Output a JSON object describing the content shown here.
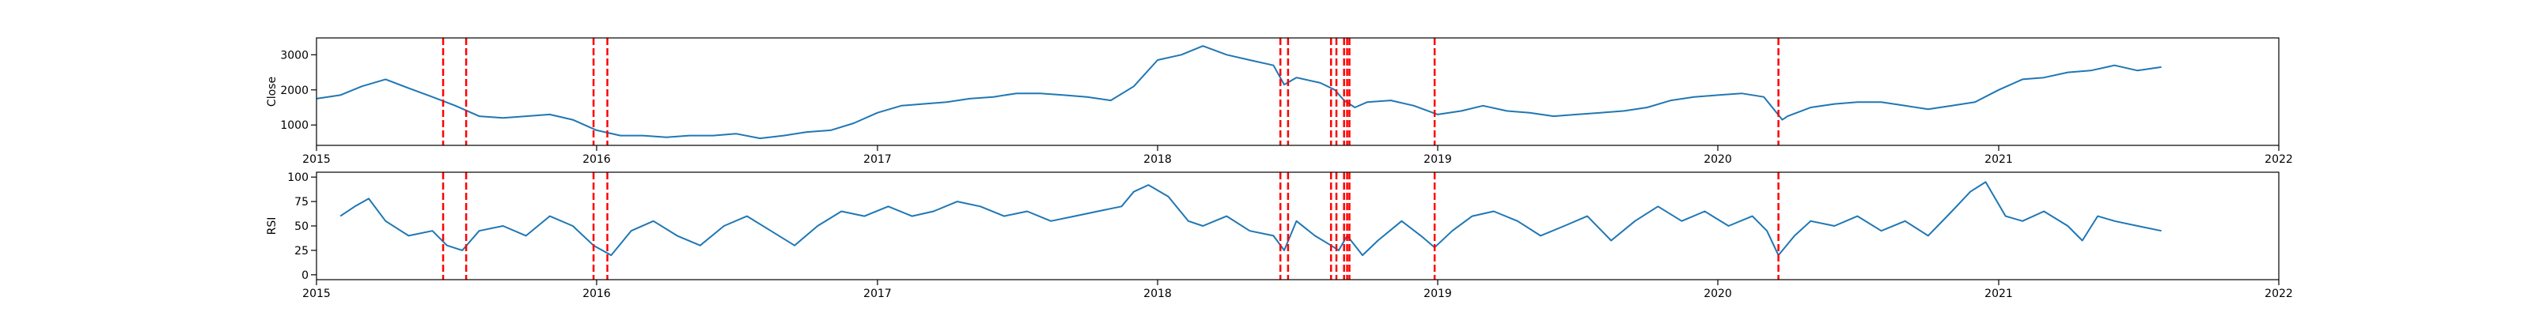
{
  "chart_data": [
    {
      "type": "line",
      "ylabel": "Close",
      "xlim": [
        "2015-01-01",
        "2022-01-01"
      ],
      "ylim": [
        420,
        3480
      ],
      "x_ticks": [
        "2015",
        "2016",
        "2017",
        "2018",
        "2019",
        "2020",
        "2021",
        "2022"
      ],
      "y_ticks": [
        1000,
        2000,
        3000
      ],
      "grid": false,
      "line_color": "#1f77b4",
      "event_color": "#ff0000",
      "events": [
        "2015-06-15",
        "2015-07-15",
        "2015-12-28",
        "2016-01-15",
        "2018-06-10",
        "2018-06-20",
        "2018-08-15",
        "2018-08-22",
        "2018-09-01",
        "2018-09-05",
        "2018-09-08",
        "2018-12-28",
        "2020-03-20"
      ],
      "series": [
        {
          "x": [
            "2015-01-01",
            "2015-02-01",
            "2015-03-01",
            "2015-04-01",
            "2015-05-01",
            "2015-06-01",
            "2015-07-01",
            "2015-08-01",
            "2015-09-01",
            "2015-10-01",
            "2015-11-01",
            "2015-12-01",
            "2016-01-01",
            "2016-02-01",
            "2016-03-01",
            "2016-04-01",
            "2016-05-01",
            "2016-06-01",
            "2016-07-01",
            "2016-08-01",
            "2016-09-01",
            "2016-10-01",
            "2016-11-01",
            "2016-12-01",
            "2017-01-01",
            "2017-02-01",
            "2017-03-01",
            "2017-04-01",
            "2017-05-01",
            "2017-06-01",
            "2017-07-01",
            "2017-08-01",
            "2017-09-01",
            "2017-10-01",
            "2017-11-01",
            "2017-12-01",
            "2018-01-01",
            "2018-02-01",
            "2018-03-01",
            "2018-04-01",
            "2018-05-01",
            "2018-06-01",
            "2018-06-15",
            "2018-07-01",
            "2018-08-01",
            "2018-08-20",
            "2018-09-01",
            "2018-09-15",
            "2018-10-01",
            "2018-11-01",
            "2018-12-01",
            "2019-01-01",
            "2019-02-01",
            "2019-03-01",
            "2019-04-01",
            "2019-05-01",
            "2019-06-01",
            "2019-07-01",
            "2019-08-01",
            "2019-09-01",
            "2019-10-01",
            "2019-11-01",
            "2019-12-01",
            "2020-01-01",
            "2020-02-01",
            "2020-03-01",
            "2020-03-25",
            "2020-04-01",
            "2020-05-01",
            "2020-06-01",
            "2020-07-01",
            "2020-08-01",
            "2020-09-01",
            "2020-10-01",
            "2020-11-01",
            "2020-12-01",
            "2021-01-01",
            "2021-02-01",
            "2021-03-01",
            "2021-04-01",
            "2021-05-01",
            "2021-06-01",
            "2021-07-01",
            "2021-08-01"
          ],
          "values": [
            1750,
            1850,
            2100,
            2300,
            2050,
            1800,
            1550,
            1250,
            1200,
            1250,
            1300,
            1150,
            850,
            700,
            700,
            650,
            700,
            700,
            750,
            620,
            700,
            800,
            850,
            1050,
            1350,
            1550,
            1600,
            1650,
            1750,
            1800,
            1900,
            1900,
            1850,
            1800,
            1700,
            2100,
            2850,
            3000,
            3250,
            3000,
            2850,
            2700,
            2150,
            2350,
            2200,
            2000,
            1700,
            1500,
            1650,
            1700,
            1550,
            1300,
            1400,
            1550,
            1400,
            1350,
            1250,
            1300,
            1350,
            1400,
            1500,
            1700,
            1800,
            1850,
            1900,
            1800,
            1150,
            1250,
            1500,
            1600,
            1650,
            1650,
            1550,
            1450,
            1550,
            1650,
            2000,
            2300,
            2350,
            2500,
            2550,
            2700,
            2550,
            2650
          ]
        }
      ]
    },
    {
      "type": "line",
      "ylabel": "RSI",
      "xlim": [
        "2015-01-01",
        "2022-01-01"
      ],
      "ylim": [
        -5,
        105
      ],
      "x_ticks": [
        "2015",
        "2016",
        "2017",
        "2018",
        "2019",
        "2020",
        "2021",
        "2022"
      ],
      "y_ticks": [
        0,
        25,
        50,
        75,
        100
      ],
      "grid": false,
      "line_color": "#1f77b4",
      "event_color": "#ff0000",
      "events": [
        "2015-06-15",
        "2015-07-15",
        "2015-12-28",
        "2016-01-15",
        "2018-06-10",
        "2018-06-20",
        "2018-08-15",
        "2018-08-22",
        "2018-09-01",
        "2018-09-05",
        "2018-09-08",
        "2018-12-28",
        "2020-03-20"
      ],
      "series": [
        {
          "x": [
            "2015-02-01",
            "2015-02-20",
            "2015-03-10",
            "2015-04-01",
            "2015-05-01",
            "2015-06-01",
            "2015-06-20",
            "2015-07-10",
            "2015-08-01",
            "2015-09-01",
            "2015-10-01",
            "2015-11-01",
            "2015-12-01",
            "2015-12-28",
            "2016-01-20",
            "2016-02-15",
            "2016-03-15",
            "2016-04-15",
            "2016-05-15",
            "2016-06-15",
            "2016-07-15",
            "2016-08-15",
            "2016-09-15",
            "2016-10-15",
            "2016-11-15",
            "2016-12-15",
            "2017-01-15",
            "2017-02-15",
            "2017-03-15",
            "2017-04-15",
            "2017-05-15",
            "2017-06-15",
            "2017-07-15",
            "2017-08-15",
            "2017-09-15",
            "2017-10-15",
            "2017-11-15",
            "2017-12-01",
            "2017-12-20",
            "2018-01-15",
            "2018-02-10",
            "2018-03-01",
            "2018-04-01",
            "2018-05-01",
            "2018-06-01",
            "2018-06-15",
            "2018-07-01",
            "2018-07-25",
            "2018-08-15",
            "2018-08-25",
            "2018-09-05",
            "2018-09-25",
            "2018-10-15",
            "2018-11-15",
            "2018-12-10",
            "2018-12-28",
            "2019-01-20",
            "2019-02-15",
            "2019-03-15",
            "2019-04-15",
            "2019-05-15",
            "2019-06-15",
            "2019-07-15",
            "2019-08-15",
            "2019-09-15",
            "2019-10-15",
            "2019-11-15",
            "2019-12-15",
            "2020-01-15",
            "2020-02-15",
            "2020-03-05",
            "2020-03-20",
            "2020-04-10",
            "2020-05-01",
            "2020-06-01",
            "2020-07-01",
            "2020-08-01",
            "2020-09-01",
            "2020-10-01",
            "2020-11-01",
            "2020-11-25",
            "2020-12-15",
            "2021-01-10",
            "2021-02-01",
            "2021-03-01",
            "2021-04-01",
            "2021-04-20",
            "2021-05-10",
            "2021-06-01",
            "2021-07-01",
            "2021-08-01"
          ],
          "values": [
            60,
            70,
            78,
            55,
            40,
            45,
            30,
            25,
            45,
            50,
            40,
            60,
            50,
            30,
            20,
            45,
            55,
            40,
            30,
            50,
            60,
            45,
            30,
            50,
            65,
            60,
            70,
            60,
            65,
            75,
            70,
            60,
            65,
            55,
            60,
            65,
            70,
            85,
            92,
            80,
            55,
            50,
            60,
            45,
            40,
            25,
            55,
            40,
            30,
            25,
            40,
            20,
            35,
            55,
            40,
            28,
            45,
            60,
            65,
            55,
            40,
            50,
            60,
            35,
            55,
            70,
            55,
            65,
            50,
            60,
            45,
            20,
            40,
            55,
            50,
            60,
            45,
            55,
            40,
            65,
            85,
            95,
            60,
            55,
            65,
            50,
            35,
            60,
            55,
            50,
            45
          ]
        }
      ]
    }
  ]
}
